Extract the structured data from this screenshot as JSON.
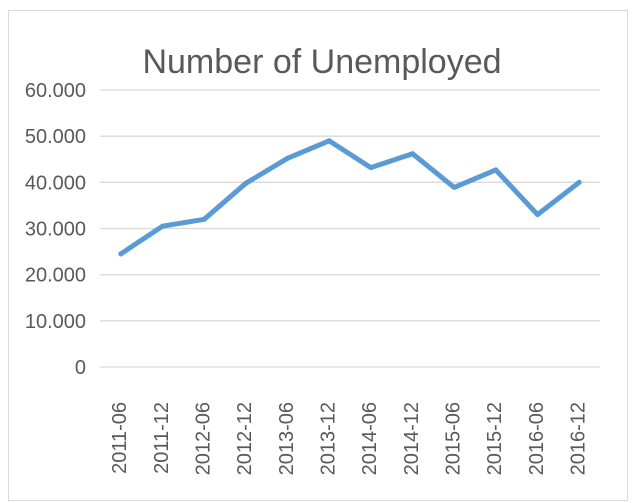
{
  "chart_data": {
    "type": "line",
    "title": "Number of Unemployed",
    "xlabel": "",
    "ylabel": "",
    "categories": [
      "2011-06",
      "2011-12",
      "2012-06",
      "2012-12",
      "2013-06",
      "2013-12",
      "2014-06",
      "2014-12",
      "2015-06",
      "2015-12",
      "2016-06",
      "2016-12"
    ],
    "series": [
      {
        "values": [
          24500,
          30500,
          32000,
          39800,
          45200,
          49000,
          43200,
          46200,
          38900,
          42700,
          33000,
          40000
        ],
        "color": "#5b9bd5"
      }
    ],
    "ylim": [
      0,
      60000
    ],
    "yticks": [
      {
        "value": 0,
        "label": "0"
      },
      {
        "value": 10000,
        "label": "10.000"
      },
      {
        "value": 20000,
        "label": "20.000"
      },
      {
        "value": 30000,
        "label": "30.000"
      },
      {
        "value": 40000,
        "label": "40.000"
      },
      {
        "value": 50000,
        "label": "50.000"
      },
      {
        "value": 60000,
        "label": "60.000"
      }
    ],
    "grid": true,
    "legend": "none",
    "grid_color": "#d9d9d9",
    "text_color": "#595959"
  }
}
